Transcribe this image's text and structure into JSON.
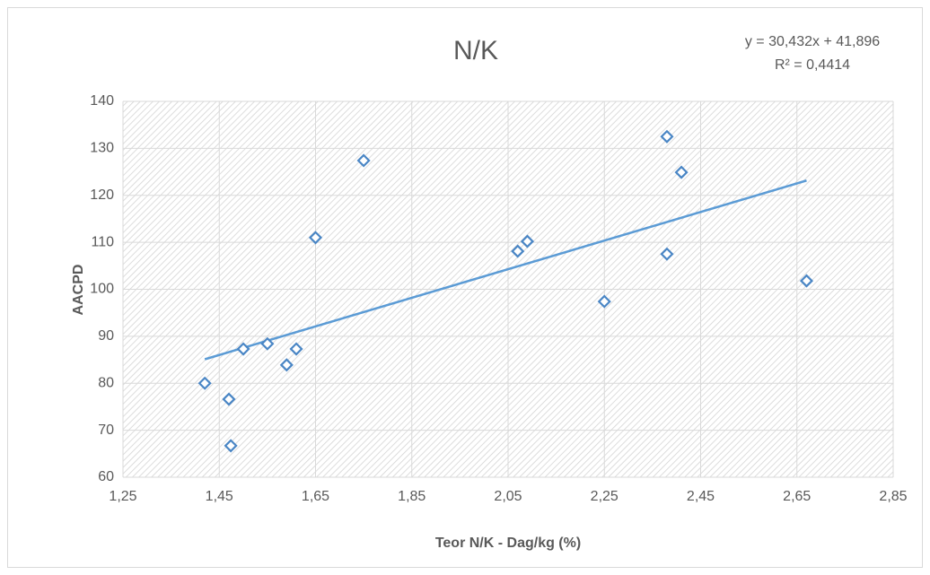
{
  "chart_data": {
    "type": "scatter",
    "title": "N/K",
    "x_label": "Teor N/K - Dag/kg (%)",
    "y_label": "AACPD",
    "x": [
      1.42,
      1.47,
      1.474,
      1.5,
      1.55,
      1.59,
      1.61,
      1.65,
      1.75,
      2.07,
      2.09,
      2.25,
      2.38,
      2.41,
      2.38,
      2.67
    ],
    "values": [
      80.0,
      76.6,
      66.7,
      87.3,
      88.4,
      83.9,
      87.3,
      111.0,
      127.4,
      108.1,
      110.2,
      97.4,
      132.5,
      124.9,
      107.5,
      101.8
    ],
    "color": "#4a86c5",
    "trendline": {
      "equation": "y = 30,432x + 41,896",
      "r_squared": "R² = 0,4414",
      "slope": 30.432,
      "intercept": 41.896,
      "color": "#5b9bd5"
    },
    "xlim": [
      1.25,
      2.85
    ],
    "xticks": [
      {
        "value": 1.25,
        "label": "1,25"
      },
      {
        "value": 1.45,
        "label": "1,45"
      },
      {
        "value": 1.65,
        "label": "1,65"
      },
      {
        "value": 1.85,
        "label": "1,85"
      },
      {
        "value": 2.05,
        "label": "2,05"
      },
      {
        "value": 2.25,
        "label": "2,25"
      },
      {
        "value": 2.45,
        "label": "2,45"
      },
      {
        "value": 2.65,
        "label": "2,65"
      },
      {
        "value": 2.85,
        "label": "2,85"
      }
    ],
    "ylim": [
      60,
      140
    ],
    "yticks": [
      60,
      70,
      80,
      90,
      100,
      110,
      120,
      130,
      140
    ],
    "grid": true
  }
}
